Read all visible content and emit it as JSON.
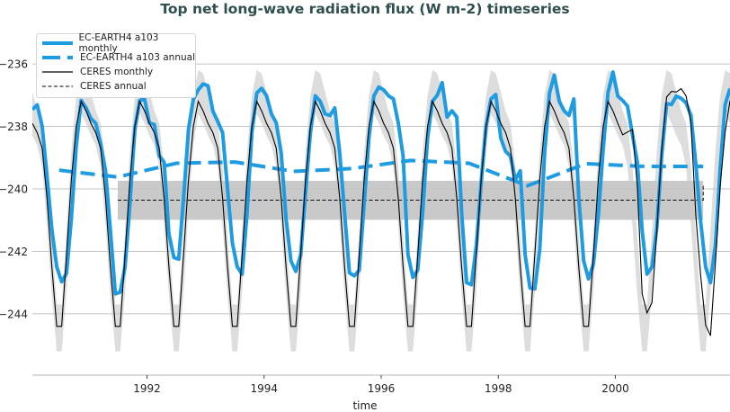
{
  "chart_data": {
    "type": "line",
    "title": "Top net long-wave radiation flux (W m-2) timeseries",
    "xlabel": "time",
    "ylabel": "",
    "xlim": [
      "1990-01",
      "2001-12"
    ],
    "ylim": [
      -245.96,
      -234.76
    ],
    "xticks": [
      1992,
      1994,
      1996,
      1998,
      2000
    ],
    "yticks": [
      -244,
      -242,
      -240,
      -238,
      -236
    ],
    "ytick_labels": [
      "−244",
      "−242",
      "−240",
      "−238",
      "−236"
    ],
    "grid": "horizontal",
    "legend_placement": "top-left",
    "colors": {
      "model": "#1f9be2",
      "obs": "#000000",
      "obs_range": "#dddddd",
      "obs_annual_band": "#c9c9c9",
      "title": "#2f4f4f"
    },
    "series": [
      {
        "name": "EC-EARTH4 a103 monthly",
        "style": "solid-thick",
        "monthly": {
          "1990": [
            -237.46,
            -237.31,
            -237.99,
            -239.6,
            -241.3,
            -242.5,
            -242.97,
            -242.7,
            -240.95,
            -238.64,
            -237.17,
            -237.41
          ],
          "1991": [
            -237.75,
            -237.9,
            -238.56,
            -239.42,
            -241.34,
            -243.36,
            -243.3,
            -242.5,
            -240.48,
            -238.07,
            -237.17,
            -237.12
          ],
          "1992": [
            -237.89,
            -237.94,
            -238.94,
            -239.14,
            -241.44,
            -242.2,
            -242.25,
            -240.29,
            -238.08,
            -237.12,
            -236.83,
            -236.64
          ],
          "1993": [
            -236.7,
            -237.51,
            -237.84,
            -238.2,
            -240.0,
            -241.73,
            -242.5,
            -242.73,
            -240.77,
            -238.18,
            -236.93,
            -236.78
          ],
          "1994": [
            -237.02,
            -237.6,
            -237.89,
            -238.85,
            -240.96,
            -242.3,
            -242.64,
            -242.11,
            -240.1,
            -238.18,
            -237.02,
            -237.2
          ],
          "1995": [
            -237.6,
            -237.65,
            -237.41,
            -238.85,
            -240.77,
            -242.69,
            -242.78,
            -242.6,
            -240.48,
            -238.37,
            -237.02,
            -236.74
          ],
          "1996": [
            -236.83,
            -237.02,
            -237.12,
            -237.89,
            -238.95,
            -242.11,
            -242.83,
            -242.59,
            -240.77,
            -238.37,
            -237.2,
            -237.0
          ],
          "1997": [
            -236.6,
            -237.7,
            -237.5,
            -237.7,
            -240.77,
            -243.0,
            -243.07,
            -241.82,
            -239.81,
            -237.99,
            -237.12,
            -236.98
          ],
          "1998": [
            -238.37,
            -238.8,
            -238.95,
            -239.71,
            -239.42,
            -242.11,
            -243.17,
            -243.2,
            -241.92,
            -238.85,
            -236.93,
            -236.36
          ],
          "1999": [
            -237.2,
            -237.5,
            -237.65,
            -237.12,
            -240.29,
            -242.3,
            -242.88,
            -242.4,
            -240.86,
            -238.75,
            -236.92,
            -236.26
          ],
          "2000": [
            -237.03,
            -237.17,
            -237.35,
            -238.27,
            -239.14,
            -241.34,
            -242.73,
            -242.5,
            -241.25,
            -238.95,
            -237.27,
            -237.3
          ],
          "2001": [
            -237.03,
            -237.1,
            -237.25,
            -237.65,
            -239.22,
            -241.06,
            -242.5,
            -243.0,
            -241.8,
            -239.33,
            -237.3,
            -236.79
          ]
        }
      },
      {
        "name": "EC-EARTH4 a103 annual",
        "style": "dashed-thick",
        "years": [
          1990,
          1991,
          1992,
          1993,
          1994,
          1995,
          1996,
          1997,
          1998,
          1999,
          2000,
          2001
        ],
        "values": [
          -239.4,
          -239.62,
          -239.18,
          -239.14,
          -239.44,
          -239.35,
          -239.09,
          -239.18,
          -239.9,
          -239.19,
          -239.28,
          -239.28
        ]
      },
      {
        "name": "CERES monthly",
        "style": "solid-thin",
        "monthly": {
          "1990": [
            -237.9,
            -238.2,
            -238.7,
            -240.3,
            -242.5,
            -244.4,
            -244.4,
            -242.1,
            -239.7,
            -238.0,
            -237.2,
            -237.5
          ],
          "1991": [
            -237.9,
            -238.2,
            -238.7,
            -240.3,
            -242.5,
            -244.4,
            -244.4,
            -242.1,
            -239.7,
            -238.0,
            -237.2,
            -237.5
          ],
          "1992": [
            -237.9,
            -238.2,
            -238.7,
            -240.3,
            -242.5,
            -244.4,
            -244.4,
            -242.1,
            -239.7,
            -238.0,
            -237.2,
            -237.5
          ],
          "1993": [
            -237.9,
            -238.2,
            -238.7,
            -240.3,
            -242.5,
            -244.4,
            -244.4,
            -242.1,
            -239.7,
            -238.0,
            -237.2,
            -237.5
          ],
          "1994": [
            -237.9,
            -238.2,
            -238.7,
            -240.3,
            -242.5,
            -244.4,
            -244.4,
            -242.1,
            -239.7,
            -238.0,
            -237.2,
            -237.5
          ],
          "1995": [
            -237.9,
            -238.2,
            -238.7,
            -240.3,
            -242.5,
            -244.4,
            -244.4,
            -242.1,
            -239.7,
            -238.0,
            -237.2,
            -237.5
          ],
          "1996": [
            -237.9,
            -238.2,
            -238.7,
            -240.3,
            -242.5,
            -244.4,
            -244.4,
            -242.1,
            -239.7,
            -238.0,
            -237.2,
            -237.5
          ],
          "1997": [
            -237.9,
            -238.2,
            -238.7,
            -240.3,
            -242.5,
            -244.4,
            -244.4,
            -242.1,
            -239.7,
            -238.0,
            -237.2,
            -237.5
          ],
          "1998": [
            -237.9,
            -238.2,
            -238.7,
            -240.3,
            -242.5,
            -244.4,
            -244.4,
            -242.1,
            -239.7,
            -238.0,
            -237.2,
            -237.5
          ],
          "1999": [
            -237.9,
            -238.2,
            -238.7,
            -240.3,
            -242.5,
            -244.4,
            -244.4,
            -242.1,
            -239.7,
            -238.0,
            -237.2,
            -237.5
          ],
          "2000": [
            -237.9,
            -238.27,
            -238.18,
            -238.1,
            -239.9,
            -243.36,
            -243.97,
            -243.64,
            -241.34,
            -238.75,
            -237.06,
            -236.88
          ],
          "2001": [
            -236.9,
            -236.79,
            -237.03,
            -237.9,
            -240.86,
            -242.78,
            -244.36,
            -244.7,
            -242.4,
            -239.9,
            -238.18,
            -237.17
          ]
        },
        "range_by_month": {
          "min": [
            -238.3,
            -238.6,
            -239.3,
            -241.2,
            -243.4,
            -245.2,
            -245.2,
            -243.3,
            -240.6,
            -238.6,
            -237.6,
            -237.9
          ],
          "max": [
            -236.9,
            -237.5,
            -237.9,
            -239.3,
            -241.5,
            -243.7,
            -243.7,
            -241.3,
            -238.8,
            -237.0,
            -236.2,
            -236.3
          ]
        }
      },
      {
        "name": "CERES annual",
        "style": "dashed-thin",
        "drawstyle": "steps-post",
        "years": [
          1991,
          1992,
          1993,
          1994,
          1995,
          1996,
          1997,
          1998,
          1999,
          2000,
          2001
        ],
        "values": [
          -240.36,
          -240.36,
          -240.36,
          -240.36,
          -240.36,
          -240.36,
          -240.36,
          -240.36,
          -240.36,
          -240.36,
          -239.87
        ],
        "band": {
          "min": -240.99,
          "max": -239.74
        }
      }
    ]
  }
}
